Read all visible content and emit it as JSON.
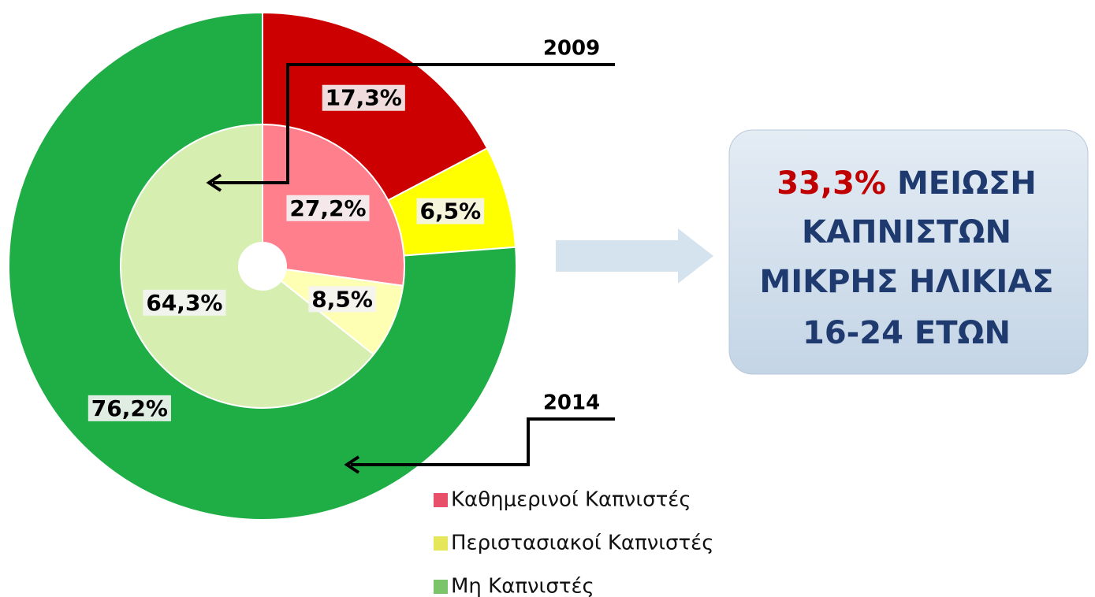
{
  "chart_data": {
    "type": "donut",
    "categories": [
      "Καθημερινοί Καπνιστές",
      "Περιστασιακοί Καπνιστές",
      "Μη Καπνιστές"
    ],
    "legend_colors": [
      "#e8506a",
      "#e6e65a",
      "#7cc46a"
    ],
    "series": [
      {
        "name": "2009",
        "ring": "inner",
        "values": [
          27.2,
          8.5,
          64.3
        ],
        "value_labels": [
          "27,2%",
          "8,5%",
          "64,3%"
        ],
        "colors": [
          "#ff7f8c",
          "#ffffb3",
          "#d6eeb0"
        ]
      },
      {
        "name": "2014",
        "ring": "outer",
        "values": [
          17.3,
          6.5,
          76.2
        ],
        "value_labels": [
          "17,3%",
          "6,5%",
          "76,2%"
        ],
        "colors": [
          "#cc0000",
          "#ffff00",
          "#1fae46"
        ]
      }
    ],
    "annotation": {
      "highlight": "33,3%",
      "lines": [
        "ΜΕΙΩΣΗ",
        "ΚΑΠΝΙΣΤΩΝ",
        "ΜΙΚΡΗΣ ΗΛΙΚΙΑΣ",
        "16-24 ΕΤΩΝ"
      ]
    }
  }
}
